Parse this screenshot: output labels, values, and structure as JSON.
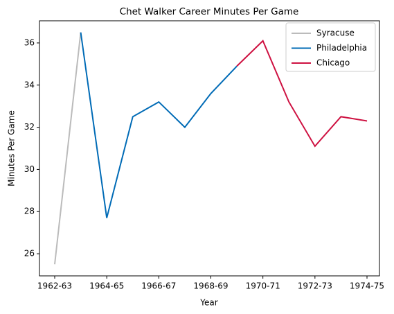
{
  "chart_data": {
    "type": "line",
    "title": "Chet Walker Career Minutes Per Game",
    "x_label": "Year",
    "y_label": "Minutes Per Game",
    "categories": [
      "1962-63",
      null,
      "1964-65",
      null,
      "1966-67",
      null,
      "1968-69",
      null,
      "1970-71",
      null,
      "1972-73",
      null,
      "1974-75"
    ],
    "series": [
      {
        "name": "Syracuse",
        "color": "#bbbbbb",
        "values": [
          25.5,
          36.5,
          null,
          null,
          null,
          null,
          null,
          null,
          null,
          null,
          null,
          null,
          null
        ]
      },
      {
        "name": "Philadelphia",
        "color": "#006bb6",
        "values": [
          null,
          36.5,
          27.7,
          32.5,
          33.2,
          32.0,
          33.6,
          34.9,
          null,
          null,
          null,
          null,
          null
        ]
      },
      {
        "name": "Chicago",
        "color": "#ce1141",
        "values": [
          null,
          null,
          null,
          null,
          null,
          null,
          null,
          34.9,
          36.1,
          33.2,
          31.1,
          32.5,
          32.3
        ]
      }
    ],
    "ylim": [
      24.95,
      37.05
    ],
    "yticks": [
      26,
      28,
      30,
      32,
      34,
      36
    ],
    "legend": "upper right"
  }
}
